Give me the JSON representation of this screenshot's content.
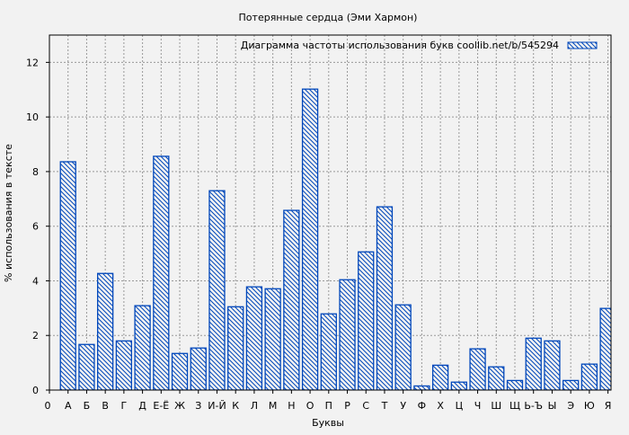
{
  "chart_data": {
    "type": "bar",
    "title": "Потерянные сердца (Эми Хармон)",
    "xlabel": "Буквы",
    "ylabel": "% использования в тексте",
    "legend": {
      "label": "Диаграмма частоты использования букв  coollib.net/b/545294",
      "placement": "top-right"
    },
    "origin_label": "0",
    "categories": [
      "А",
      "Б",
      "В",
      "Г",
      "Д",
      "Е-Ё",
      "Ж",
      "З",
      "И-Й",
      "К",
      "Л",
      "М",
      "Н",
      "О",
      "П",
      "Р",
      "С",
      "Т",
      "У",
      "Ф",
      "Х",
      "Ц",
      "Ч",
      "Ш",
      "Щ",
      "Ь-Ъ",
      "Ы",
      "Э",
      "Ю",
      "Я"
    ],
    "values": [
      8.36,
      1.67,
      4.27,
      1.8,
      3.09,
      8.56,
      1.34,
      1.54,
      7.3,
      3.05,
      3.78,
      3.71,
      6.58,
      11.02,
      2.79,
      4.04,
      5.06,
      6.71,
      3.12,
      0.15,
      0.91,
      0.29,
      1.51,
      0.85,
      0.35,
      1.9,
      1.8,
      0.35,
      0.95,
      2.99
    ],
    "ylim": [
      0,
      13
    ],
    "yticks": [
      0,
      2,
      4,
      6,
      8,
      10,
      12
    ],
    "grid": true,
    "colors": {
      "bar": "#0047bb",
      "background": "#f2f2f2",
      "grid": "#999999"
    }
  }
}
